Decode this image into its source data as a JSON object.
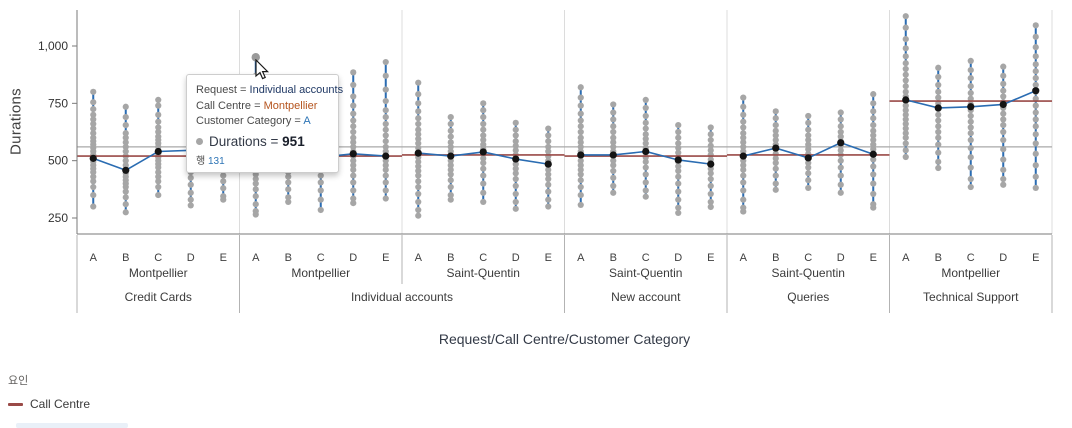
{
  "colors": {
    "whisker_blue": "#2A6CB2",
    "connector_blue": "#2A6CB2",
    "point_gray": "#A6A6A6",
    "mean_black": "#141414",
    "factor_line_red": "#9A4A47",
    "grand_mean_gray": "#A9A9A9",
    "gridline": "#DCDCDC",
    "axis_line": "#7A7A7A",
    "separator": "#B3B3B3",
    "axis_text": "#3B3B3B",
    "tooltip_request_value": "#1F3864",
    "tooltip_callcentre_value": "#B5541E",
    "tooltip_category_value": "#2E75B6"
  },
  "tooltip": {
    "rows": [
      {
        "label": "Request",
        "value": "Individual accounts",
        "value_color": "#1F3864"
      },
      {
        "label": "Call Centre",
        "value": "Montpellier",
        "value_color": "#B5541E"
      },
      {
        "label": "Customer Category",
        "value": "A",
        "value_color": "#2E75B6"
      }
    ],
    "measure": {
      "label": "Durations",
      "value": "951"
    },
    "count_label": "행",
    "count_value": "131"
  },
  "legend": {
    "title": "요인",
    "items": [
      {
        "label": "Call Centre",
        "color": "#9A4A47"
      }
    ]
  },
  "chart_data": {
    "type": "scatter",
    "x_axis_title": "Request/Call Centre/Customer Category",
    "y_axis_title": "Durations",
    "y_ticks": [
      250,
      500,
      750,
      1000
    ],
    "y_range": [
      150,
      1160
    ],
    "grand_mean": 560,
    "hover_point": {
      "request": "Individual accounts",
      "call_centre": "Montpellier",
      "category": "A",
      "value": 951
    },
    "groups": [
      {
        "request": "Credit Cards",
        "cells": [
          {
            "call_centre": "Montpellier",
            "factor_value": 520,
            "columns": [
              {
                "category": "A",
                "mean": 510,
                "points": [
                  800,
                  755,
                  725,
                  700,
                  680,
                  660,
                  640,
                  620,
                  600,
                  585,
                  570,
                  555,
                  540,
                  525,
                  510,
                  495,
                  480,
                  465,
                  450,
                  430,
                  410,
                  385,
                  350,
                  300
                ]
              },
              {
                "category": "B",
                "mean": 458,
                "points": [
                  735,
                  690,
                  655,
                  620,
                  600,
                  580,
                  560,
                  540,
                  520,
                  500,
                  480,
                  460,
                  445,
                  430,
                  415,
                  400,
                  385,
                  365,
                  340,
                  310,
                  275
                ]
              },
              {
                "category": "C",
                "mean": 540,
                "points": [
                  765,
                  740,
                  700,
                  670,
                  645,
                  625,
                  605,
                  590,
                  575,
                  560,
                  545,
                  530,
                  515,
                  500,
                  485,
                  470,
                  450,
                  430,
                  410,
                  385,
                  350
                ]
              },
              {
                "category": "D",
                "mean": 545,
                "points": [
                  770,
                  740,
                  710,
                  680,
                  655,
                  630,
                  610,
                  590,
                  570,
                  550,
                  530,
                  510,
                  490,
                  470,
                  450,
                  425,
                  395,
                  360,
                  330,
                  305
                ]
              },
              {
                "category": "E",
                "mean": 520,
                "points": [
                  760,
                  720,
                  690,
                  660,
                  635,
                  615,
                  595,
                  575,
                  555,
                  535,
                  515,
                  495,
                  475,
                  455,
                  435,
                  410,
                  380,
                  345,
                  330
                ]
              }
            ]
          }
        ]
      },
      {
        "request": "Individual accounts",
        "cells": [
          {
            "call_centre": "Montpellier",
            "factor_value": 520,
            "columns": [
              {
                "category": "A",
                "mean": 520,
                "points": [
                  951,
                  870,
                  820,
                  780,
                  750,
                  720,
                  695,
                  670,
                  645,
                  620,
                  600,
                  580,
                  560,
                  540,
                  520,
                  500,
                  480,
                  460,
                  440,
                  420,
                  400,
                  375,
                  345,
                  310,
                  280,
                  265
                ]
              },
              {
                "category": "B",
                "mean": 510,
                "points": [
                  780,
                  740,
                  700,
                  670,
                  640,
                  615,
                  590,
                  570,
                  550,
                  530,
                  510,
                  490,
                  470,
                  450,
                  430,
                  405,
                  375,
                  340,
                  320
                ]
              },
              {
                "category": "C",
                "mean": 515,
                "points": [
                  770,
                  730,
                  695,
                  660,
                  630,
                  605,
                  580,
                  560,
                  540,
                  520,
                  500,
                  480,
                  460,
                  435,
                  405,
                  370,
                  330,
                  285
                ]
              },
              {
                "category": "D",
                "mean": 530,
                "points": [
                  885,
                  830,
                  780,
                  740,
                  705,
                  675,
                  650,
                  625,
                  600,
                  580,
                  560,
                  540,
                  520,
                  500,
                  480,
                  460,
                  435,
                  405,
                  370,
                  335,
                  315
                ]
              },
              {
                "category": "E",
                "mean": 520,
                "points": [
                  930,
                  870,
                  810,
                  760,
                  720,
                  690,
                  660,
                  635,
                  610,
                  585,
                  560,
                  540,
                  520,
                  500,
                  480,
                  460,
                  435,
                  405,
                  370,
                  335
                ]
              }
            ]
          },
          {
            "call_centre": "Saint-Quentin",
            "factor_value": 525,
            "columns": [
              {
                "category": "A",
                "mean": 533,
                "points": [
                  840,
                  790,
                  750,
                  715,
                  685,
                  660,
                  635,
                  615,
                  595,
                  575,
                  555,
                  535,
                  515,
                  495,
                  475,
                  455,
                  435,
                  410,
                  385,
                  355,
                  320,
                  285,
                  260
                ]
              },
              {
                "category": "B",
                "mean": 520,
                "points": [
                  690,
                  660,
                  630,
                  605,
                  580,
                  560,
                  540,
                  520,
                  500,
                  480,
                  460,
                  440,
                  415,
                  385,
                  350,
                  330
                ]
              },
              {
                "category": "C",
                "mean": 538,
                "points": [
                  750,
                  720,
                  690,
                  660,
                  635,
                  610,
                  590,
                  570,
                  550,
                  530,
                  510,
                  490,
                  465,
                  435,
                  400,
                  360,
                  320
                ]
              },
              {
                "category": "D",
                "mean": 507,
                "points": [
                  665,
                  635,
                  610,
                  585,
                  565,
                  545,
                  525,
                  505,
                  485,
                  465,
                  445,
                  420,
                  390,
                  355,
                  320,
                  290
                ]
              },
              {
                "category": "E",
                "mean": 485,
                "points": [
                  640,
                  610,
                  585,
                  560,
                  540,
                  520,
                  500,
                  480,
                  460,
                  440,
                  420,
                  395,
                  365,
                  330,
                  300
                ]
              }
            ]
          }
        ]
      },
      {
        "request": "New account",
        "cells": [
          {
            "call_centre": "Saint-Quentin",
            "factor_value": 520,
            "columns": [
              {
                "category": "A",
                "mean": 525,
                "points": [
                  820,
                  775,
                  740,
                  705,
                  675,
                  650,
                  625,
                  600,
                  580,
                  560,
                  540,
                  520,
                  500,
                  480,
                  460,
                  440,
                  415,
                  385,
                  350,
                  307
                ]
              },
              {
                "category": "B",
                "mean": 525,
                "points": [
                  745,
                  710,
                  680,
                  650,
                  625,
                  600,
                  580,
                  560,
                  540,
                  520,
                  500,
                  480,
                  455,
                  425,
                  390,
                  360
                ]
              },
              {
                "category": "C",
                "mean": 540,
                "points": [
                  765,
                  730,
                  695,
                  665,
                  640,
                  615,
                  595,
                  575,
                  555,
                  535,
                  515,
                  495,
                  470,
                  440,
                  405,
                  370,
                  343
                ]
              },
              {
                "category": "D",
                "mean": 503,
                "points": [
                  655,
                  625,
                  600,
                  575,
                  555,
                  535,
                  515,
                  495,
                  475,
                  455,
                  430,
                  400,
                  365,
                  330,
                  295,
                  272
                ]
              },
              {
                "category": "E",
                "mean": 485,
                "points": [
                  645,
                  615,
                  590,
                  565,
                  545,
                  525,
                  505,
                  485,
                  465,
                  445,
                  420,
                  390,
                  355,
                  320,
                  298
                ]
              }
            ]
          }
        ]
      },
      {
        "request": "Queries",
        "cells": [
          {
            "call_centre": "Saint-Quentin",
            "factor_value": 525,
            "columns": [
              {
                "category": "A",
                "mean": 520,
                "points": [
                  775,
                  735,
                  700,
                  670,
                  645,
                  620,
                  600,
                  580,
                  560,
                  540,
                  520,
                  500,
                  480,
                  460,
                  435,
                  405,
                  370,
                  330,
                  295,
                  278
                ]
              },
              {
                "category": "B",
                "mean": 555,
                "points": [
                  715,
                  685,
                  655,
                  630,
                  610,
                  590,
                  570,
                  550,
                  530,
                  510,
                  490,
                  465,
                  435,
                  400,
                  373
                ]
              },
              {
                "category": "C",
                "mean": 512,
                "points": [
                  695,
                  665,
                  635,
                  610,
                  590,
                  570,
                  550,
                  530,
                  510,
                  490,
                  470,
                  445,
                  415,
                  381
                ]
              },
              {
                "category": "D",
                "mean": 578,
                "points": [
                  710,
                  680,
                  650,
                  625,
                  605,
                  585,
                  565,
                  545,
                  525,
                  500,
                  470,
                  435,
                  395,
                  360
                ]
              },
              {
                "category": "E",
                "mean": 528,
                "points": [
                  790,
                  750,
                  715,
                  685,
                  655,
                  630,
                  610,
                  590,
                  570,
                  550,
                  530,
                  505,
                  475,
                  440,
                  400,
                  355,
                  310,
                  295
                ]
              }
            ]
          }
        ]
      },
      {
        "request": "Technical Support",
        "cells": [
          {
            "call_centre": "Montpellier",
            "factor_value": 760,
            "columns": [
              {
                "category": "A",
                "mean": 765,
                "points": [
                  1130,
                  1080,
                  1030,
                  990,
                  955,
                  925,
                  900,
                  875,
                  850,
                  825,
                  800,
                  780,
                  760,
                  740,
                  720,
                  700,
                  680,
                  660,
                  640,
                  620,
                  600,
                  575,
                  545,
                  516
                ]
              },
              {
                "category": "B",
                "mean": 730,
                "points": [
                  905,
                  865,
                  830,
                  800,
                  775,
                  750,
                  725,
                  700,
                  675,
                  650,
                  625,
                  600,
                  570,
                  535,
                  495,
                  468
                ]
              },
              {
                "category": "C",
                "mean": 735,
                "points": [
                  935,
                  895,
                  860,
                  825,
                  795,
                  770,
                  745,
                  720,
                  695,
                  670,
                  645,
                  620,
                  590,
                  555,
                  515,
                  470,
                  420,
                  385
                ]
              },
              {
                "category": "D",
                "mean": 745,
                "points": [
                  910,
                  870,
                  835,
                  805,
                  780,
                  755,
                  730,
                  705,
                  680,
                  655,
                  625,
                  590,
                  550,
                  505,
                  460,
                  420,
                  395
                ]
              },
              {
                "category": "E",
                "mean": 805,
                "points": [
                  1090,
                  1040,
                  995,
                  955,
                  920,
                  890,
                  860,
                  830,
                  800,
                  770,
                  740,
                  710,
                  680,
                  650,
                  615,
                  575,
                  530,
                  480,
                  430,
                  381
                ]
              }
            ]
          }
        ]
      }
    ]
  }
}
